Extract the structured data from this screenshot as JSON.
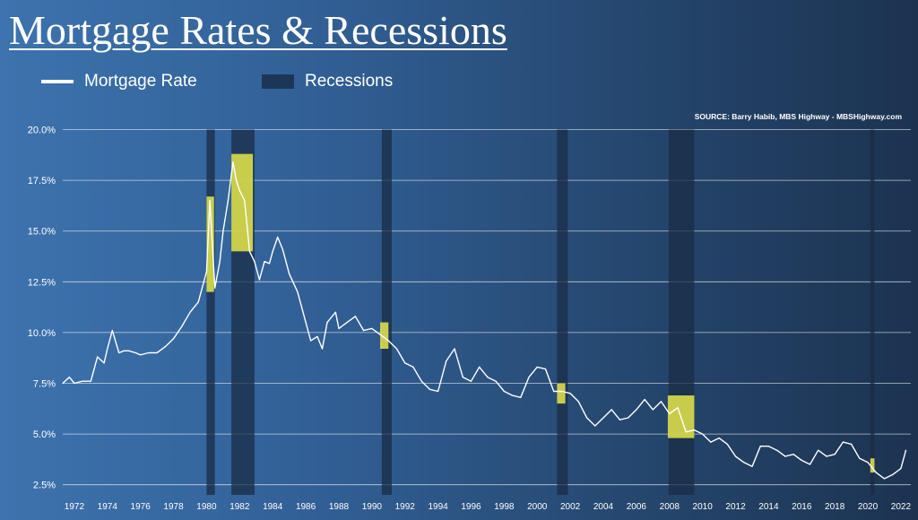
{
  "title": "Mortgage Rates & Recessions",
  "legend": {
    "line_label": "Mortgage Rate",
    "recession_label": "Recessions"
  },
  "source": "SOURCE: Barry Habib, MBS Highway - MBSHighway.com",
  "colors": {
    "line": "#ffffff",
    "recession": "#1a2c46",
    "highlight": "#e8e84a",
    "grid": "#ffffff"
  },
  "chart_data": {
    "type": "line",
    "title": "Mortgage Rates & Recessions",
    "xlabel": "",
    "ylabel": "",
    "xlim": [
      1971.3,
      2022.6
    ],
    "ylim": [
      2.0,
      20.2
    ],
    "y_ticks": [
      2.5,
      5.0,
      7.5,
      10.0,
      12.5,
      15.0,
      17.5,
      20.0
    ],
    "y_tick_labels": [
      "2.5%",
      "5.0%",
      "7.5%",
      "10.0%",
      "12.5%",
      "15.0%",
      "17.5%",
      "20.0%"
    ],
    "x_ticks": [
      1972,
      1974,
      1976,
      1978,
      1980,
      1982,
      1984,
      1986,
      1988,
      1990,
      1992,
      1994,
      1996,
      1998,
      2000,
      2002,
      2004,
      2006,
      2008,
      2010,
      2012,
      2014,
      2016,
      2018,
      2020,
      2022
    ],
    "grid": "horizontal",
    "legend_position": "top-left",
    "series": [
      {
        "name": "Mortgage Rate",
        "x": [
          1971.3,
          1971.7,
          1972.0,
          1972.5,
          1973.0,
          1973.4,
          1973.8,
          1974.0,
          1974.3,
          1974.7,
          1975.0,
          1975.3,
          1975.7,
          1976.0,
          1976.5,
          1977.0,
          1977.5,
          1978.0,
          1978.5,
          1979.0,
          1979.5,
          1980.0,
          1980.2,
          1980.5,
          1980.8,
          1981.0,
          1981.3,
          1981.6,
          1981.8,
          1982.0,
          1982.3,
          1982.6,
          1982.9,
          1983.2,
          1983.5,
          1983.8,
          1984.0,
          1984.3,
          1984.6,
          1985.0,
          1985.5,
          1986.0,
          1986.3,
          1986.7,
          1987.0,
          1987.3,
          1987.8,
          1988.0,
          1988.5,
          1989.0,
          1989.5,
          1990.0,
          1990.5,
          1991.0,
          1991.5,
          1992.0,
          1992.5,
          1993.0,
          1993.5,
          1994.0,
          1994.5,
          1995.0,
          1995.5,
          1996.0,
          1996.5,
          1997.0,
          1997.5,
          1998.0,
          1998.5,
          1999.0,
          1999.5,
          2000.0,
          2000.5,
          2001.0,
          2001.5,
          2002.0,
          2002.5,
          2003.0,
          2003.5,
          2004.0,
          2004.5,
          2005.0,
          2005.5,
          2006.0,
          2006.5,
          2007.0,
          2007.5,
          2008.0,
          2008.5,
          2009.0,
          2009.5,
          2010.0,
          2010.5,
          2011.0,
          2011.5,
          2012.0,
          2012.5,
          2013.0,
          2013.5,
          2014.0,
          2014.5,
          2015.0,
          2015.5,
          2016.0,
          2016.5,
          2017.0,
          2017.5,
          2018.0,
          2018.5,
          2019.0,
          2019.5,
          2020.0,
          2020.5,
          2021.0,
          2021.5,
          2022.0,
          2022.3
        ],
        "values": [
          7.5,
          7.8,
          7.5,
          7.6,
          7.6,
          8.8,
          8.5,
          9.2,
          10.1,
          9.0,
          9.1,
          9.1,
          9.0,
          8.9,
          9.0,
          9.0,
          9.3,
          9.7,
          10.3,
          11.0,
          11.5,
          13.0,
          16.5,
          12.2,
          13.5,
          15.0,
          16.5,
          18.4,
          17.5,
          17.0,
          16.5,
          14.0,
          13.5,
          12.6,
          13.5,
          13.4,
          14.0,
          14.7,
          14.1,
          12.9,
          12.0,
          10.5,
          9.6,
          9.8,
          9.2,
          10.5,
          11.0,
          10.2,
          10.5,
          10.8,
          10.1,
          10.2,
          9.9,
          9.6,
          9.2,
          8.5,
          8.3,
          7.6,
          7.2,
          7.1,
          8.6,
          9.2,
          7.8,
          7.6,
          8.3,
          7.8,
          7.6,
          7.1,
          6.9,
          6.8,
          7.8,
          8.3,
          8.2,
          7.1,
          7.1,
          7.0,
          6.6,
          5.8,
          5.4,
          5.8,
          6.2,
          5.7,
          5.8,
          6.2,
          6.7,
          6.2,
          6.6,
          6.0,
          6.3,
          5.1,
          5.2,
          5.0,
          4.6,
          4.8,
          4.5,
          3.9,
          3.6,
          3.4,
          4.4,
          4.4,
          4.2,
          3.9,
          4.0,
          3.7,
          3.5,
          4.2,
          3.9,
          4.0,
          4.6,
          4.5,
          3.8,
          3.6,
          3.1,
          2.8,
          3.0,
          3.3,
          4.2
        ]
      }
    ],
    "recessions": [
      [
        1980.0,
        1980.5
      ],
      [
        1981.5,
        1982.9
      ],
      [
        1990.6,
        1991.2
      ],
      [
        2001.2,
        2001.85
      ],
      [
        2007.95,
        2009.5
      ],
      [
        2020.15,
        2020.4
      ]
    ],
    "highlights": [
      [
        1980.0,
        1980.45,
        12.0,
        16.7
      ],
      [
        1981.5,
        1982.8,
        14.0,
        18.8
      ],
      [
        1990.5,
        1991.0,
        9.2,
        10.5
      ],
      [
        2001.2,
        2001.7,
        6.5,
        7.5
      ],
      [
        2007.9,
        2009.5,
        4.8,
        6.9
      ],
      [
        2020.15,
        2020.4,
        3.1,
        3.8
      ]
    ]
  }
}
